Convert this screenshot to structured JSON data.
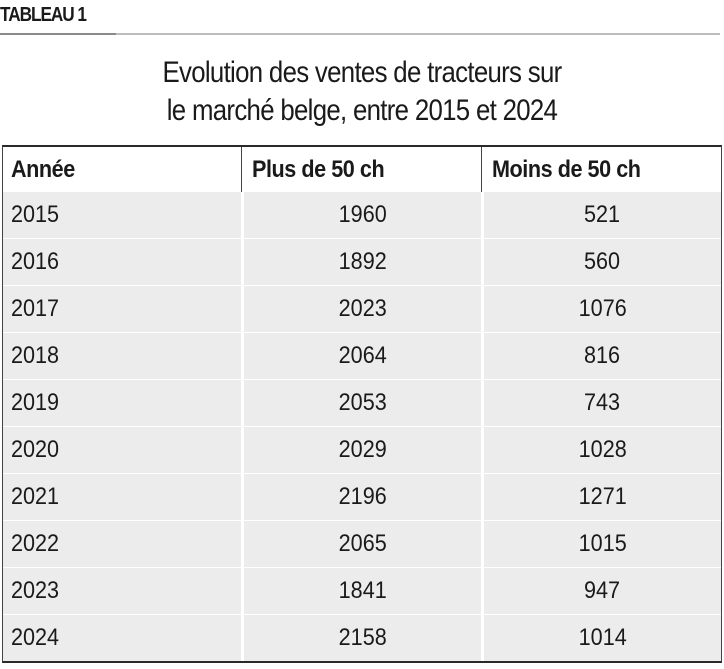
{
  "tag": "TABLEAU 1",
  "title_lines": [
    "Evolution des ventes de tracteurs sur",
    "le marché belge, entre 2015 et 2024"
  ],
  "colors": {
    "row_background": "#ececec",
    "text": "#1a1a1a",
    "border": "#2a2a2a"
  },
  "chart_data": {
    "type": "table",
    "title": "Evolution des ventes de tracteurs sur le marché belge, entre 2015 et 2024",
    "columns": [
      "Année",
      "Plus de 50 ch",
      "Moins de 50 ch"
    ],
    "rows": [
      [
        "2015",
        "1960",
        "521"
      ],
      [
        "2016",
        "1892",
        "560"
      ],
      [
        "2017",
        "2023",
        "1076"
      ],
      [
        "2018",
        "2064",
        "816"
      ],
      [
        "2019",
        "2053",
        "743"
      ],
      [
        "2020",
        "2029",
        "1028"
      ],
      [
        "2021",
        "2196",
        "1271"
      ],
      [
        "2022",
        "2065",
        "1015"
      ],
      [
        "2023",
        "1841",
        "947"
      ],
      [
        "2024",
        "2158",
        "1014"
      ]
    ]
  }
}
